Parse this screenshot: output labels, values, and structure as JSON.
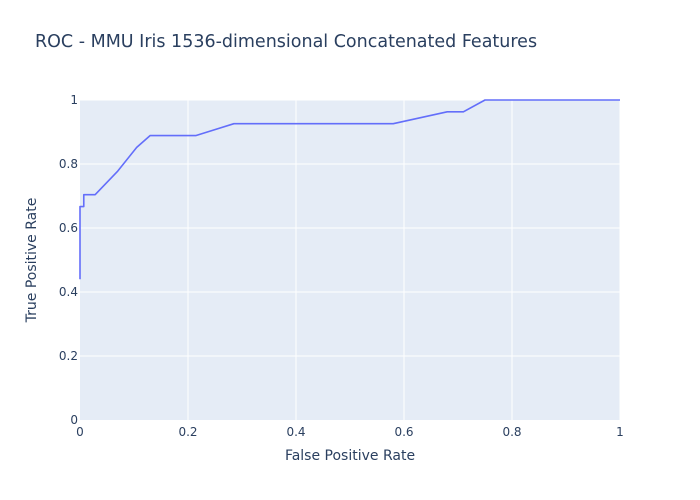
{
  "chart_data": {
    "type": "line",
    "title": "ROC - MMU Iris 1536-dimensional Concatenated Features",
    "xlabel": "False Positive Rate",
    "ylabel": "True Positive Rate",
    "xlim": [
      0,
      1
    ],
    "ylim": [
      0,
      1
    ],
    "xticks": [
      "0",
      "0.2",
      "0.4",
      "0.6",
      "0.8",
      "1"
    ],
    "yticks": [
      "0",
      "0.2",
      "0.4",
      "0.6",
      "0.8",
      "1"
    ],
    "grid": true,
    "legend": "none",
    "series": [
      {
        "color": "#636efa",
        "x": [
          0,
          0,
          0.007,
          0.007,
          0.028,
          0.07,
          0.105,
          0.13,
          0.215,
          0.285,
          0.58,
          0.68,
          0.71,
          0.75,
          1
        ],
        "y": [
          0.44,
          0.667,
          0.667,
          0.704,
          0.704,
          0.778,
          0.852,
          0.889,
          0.889,
          0.926,
          0.926,
          0.963,
          0.963,
          1,
          1
        ]
      }
    ]
  }
}
